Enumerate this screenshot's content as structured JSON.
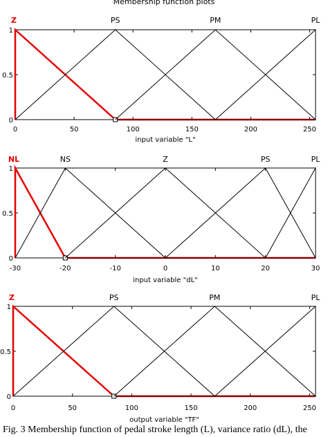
{
  "header": {
    "title": "Membership function plots"
  },
  "caption": "Fig. 3 Membership function of pedal stroke length (L), variance ratio (dL), the",
  "colors": {
    "highlight": "#e60000",
    "line": "#000000",
    "axis": "#000000"
  },
  "chart_data": [
    {
      "type": "line",
      "xlabel": "input variable \"L\"",
      "xlim": [
        0,
        255
      ],
      "ylim": [
        0,
        1
      ],
      "xticks": [
        0,
        50,
        100,
        150,
        200,
        250
      ],
      "yticks": [
        0,
        0.5,
        1
      ],
      "ytick_labels": [
        "0",
        "0.5",
        "1"
      ],
      "grid": false,
      "highlight_series": "Z",
      "series": [
        {
          "name": "Z",
          "x": [
            0,
            0,
            85
          ],
          "y": [
            0,
            1,
            0
          ]
        },
        {
          "name": "PS",
          "x": [
            0,
            85,
            170
          ],
          "y": [
            0,
            1,
            0
          ]
        },
        {
          "name": "PM",
          "x": [
            85,
            170,
            255
          ],
          "y": [
            0,
            1,
            0
          ]
        },
        {
          "name": "PL",
          "x": [
            170,
            255,
            255
          ],
          "y": [
            0,
            1,
            0
          ]
        }
      ]
    },
    {
      "type": "line",
      "xlabel": "input variable \"dL\"",
      "xlim": [
        -30,
        30
      ],
      "ylim": [
        0,
        1
      ],
      "xticks": [
        -30,
        -20,
        -10,
        0,
        10,
        20,
        30
      ],
      "yticks": [
        0,
        0.5,
        1
      ],
      "ytick_labels": [
        "0",
        "0.5",
        "1"
      ],
      "grid": false,
      "highlight_series": "NL",
      "series": [
        {
          "name": "NL",
          "x": [
            -30,
            -30,
            -20
          ],
          "y": [
            0,
            1,
            0
          ]
        },
        {
          "name": "NS",
          "x": [
            -30,
            -20,
            0
          ],
          "y": [
            0,
            1,
            0
          ]
        },
        {
          "name": "Z",
          "x": [
            -20,
            0,
            20
          ],
          "y": [
            0,
            1,
            0
          ]
        },
        {
          "name": "PS",
          "x": [
            0,
            20,
            30
          ],
          "y": [
            0,
            1,
            0
          ]
        },
        {
          "name": "PL",
          "x": [
            20,
            30,
            30
          ],
          "y": [
            0,
            1,
            0
          ]
        }
      ]
    },
    {
      "type": "line",
      "xlabel": "output variable \"TF\"",
      "xlim": [
        0,
        255
      ],
      "ylim": [
        0,
        1
      ],
      "xticks": [
        0,
        50,
        100,
        150,
        200,
        250
      ],
      "yticks": [
        0,
        0.5,
        1
      ],
      "ytick_labels": [
        "0",
        "0.5",
        "1"
      ],
      "grid": false,
      "highlight_series": "Z",
      "series": [
        {
          "name": "Z",
          "x": [
            0,
            0,
            85
          ],
          "y": [
            0,
            1,
            0
          ]
        },
        {
          "name": "PS",
          "x": [
            0,
            85,
            170
          ],
          "y": [
            0,
            1,
            0
          ]
        },
        {
          "name": "PM",
          "x": [
            85,
            170,
            255
          ],
          "y": [
            0,
            1,
            0
          ]
        },
        {
          "name": "PL",
          "x": [
            170,
            255,
            255
          ],
          "y": [
            0,
            1,
            0
          ]
        }
      ]
    }
  ]
}
